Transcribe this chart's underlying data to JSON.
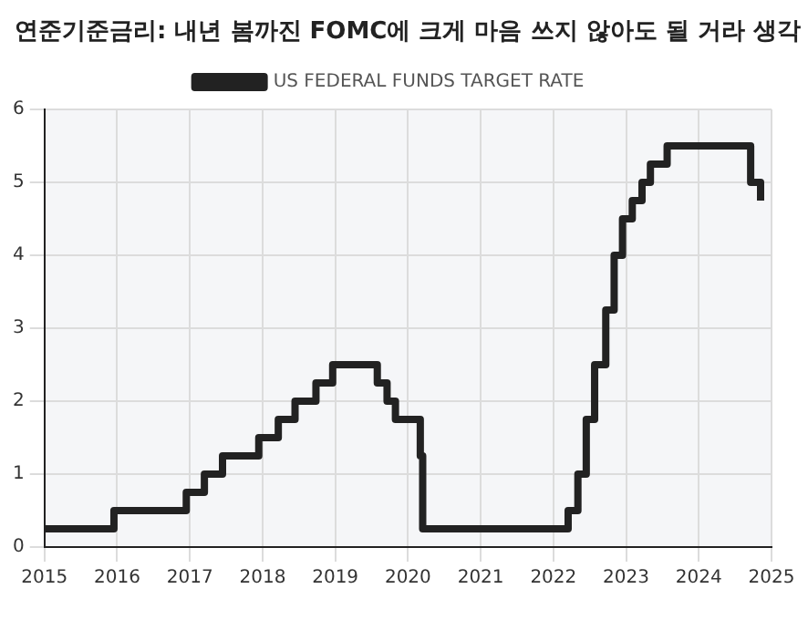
{
  "chart_data": {
    "type": "step",
    "title": "연준기준금리: 내년 봄까진 FOMC에 크게 마음 쓰지 않아도 될 거라 생각",
    "series": [
      {
        "name": "US FEDERAL FUNDS TARGET RATE",
        "color": "#222222",
        "x": [
          "2015-01-01",
          "2015-12-16",
          "2016-12-14",
          "2017-03-15",
          "2017-06-14",
          "2017-12-13",
          "2018-03-21",
          "2018-06-13",
          "2018-09-26",
          "2018-12-19",
          "2019-07-31",
          "2019-09-18",
          "2019-10-30",
          "2020-03-03",
          "2020-03-15",
          "2022-03-16",
          "2022-05-04",
          "2022-06-15",
          "2022-07-27",
          "2022-09-21",
          "2022-11-02",
          "2022-12-14",
          "2023-02-01",
          "2023-03-22",
          "2023-05-03",
          "2023-07-26",
          "2024-09-18",
          "2024-11-07"
        ],
        "values": [
          0.25,
          0.5,
          0.75,
          1.0,
          1.25,
          1.5,
          1.75,
          2.0,
          2.25,
          2.5,
          2.25,
          2.0,
          1.75,
          1.25,
          0.25,
          0.5,
          1.0,
          1.75,
          2.5,
          3.25,
          4.0,
          4.5,
          4.75,
          5.0,
          5.25,
          5.5,
          5.0,
          4.75
        ]
      }
    ],
    "xlim": [
      "2015",
      "2025"
    ],
    "xticks": [
      "2015",
      "2016",
      "2017",
      "2018",
      "2019",
      "2020",
      "2021",
      "2022",
      "2023",
      "2024",
      "2025"
    ],
    "ylim": [
      0,
      6
    ],
    "yticks": [
      0,
      1,
      2,
      3,
      4,
      5,
      6
    ],
    "grid": true,
    "legend": "top",
    "line_style": "solid",
    "marker": "none"
  }
}
